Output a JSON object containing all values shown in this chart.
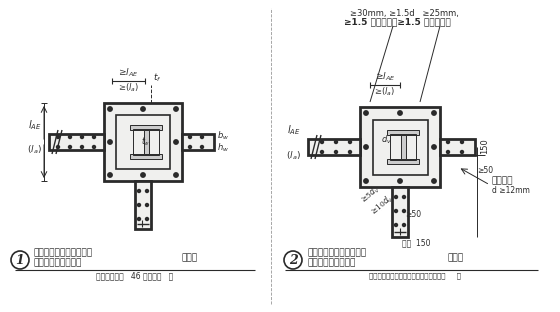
{
  "bg_color": "#ffffff",
  "line_color": "#2a2a2a",
  "title1_line1": "钢筋混凝土剪力墙与钢骨",
  "title1_line2": "混凝土柱的连接构造",
  "title1_suffix": "（一）",
  "title2_line1": "钢筋混凝土剪力墙与钢骨",
  "title2_line2": "混凝土柱的连接构造",
  "title2_suffix": "（二）",
  "sub1": "（图中附有表   46 中的符号   ）",
  "sub2": "〈图中附有钢筋混凝土柱的截面配筋要求     〉",
  "annot_top_right1": "≥30mm, ≥1.5d   ≥25mm,",
  "annot_top_right2": "≥1.5 粗骨料直径≥1.5 粗骨料直径",
  "annot_right1": "纵筋直径",
  "annot_right2": "d ≥12mm",
  "num1": "1",
  "num2": "2"
}
